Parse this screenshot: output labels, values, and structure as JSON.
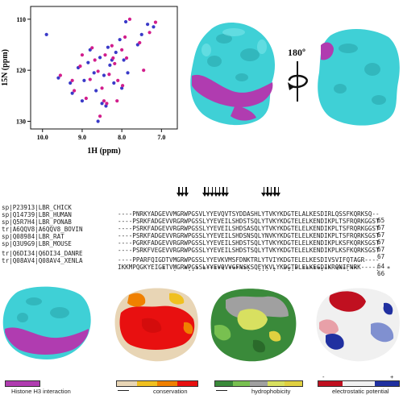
{
  "nmr": {
    "xlabel": "1H (ppm)",
    "ylabel": "15N (ppm)",
    "x_ticks": [
      "10.0",
      "9.0",
      "8.0",
      "7.0"
    ],
    "y_ticks": [
      "110",
      "120",
      "130"
    ]
  },
  "chart_data": {
    "type": "scatter",
    "xlabel": "1H (ppm)",
    "ylabel": "15N (ppm)",
    "xlim": [
      10.3,
      6.6
    ],
    "ylim": [
      107.5,
      131.5
    ],
    "series": [
      {
        "color": "#3a3ac8",
        "x": [
          9.6,
          9.25,
          9.1,
          9.0,
          8.95,
          8.85,
          8.7,
          8.65,
          8.55,
          8.45,
          8.35,
          8.3,
          8.2,
          8.15,
          8.05,
          7.95,
          7.9,
          7.85,
          7.5,
          7.35,
          7.2,
          7.6,
          8.4,
          8.8,
          9.3,
          8.5,
          8.0,
          9.9,
          8.25,
          8.6
        ],
        "y": [
          121.5,
          124.5,
          119.5,
          126,
          122,
          118.5,
          120.5,
          124,
          117.5,
          121,
          115.5,
          119,
          122.5,
          116.5,
          114,
          118,
          110.5,
          120.5,
          113,
          111,
          111.5,
          115,
          127,
          116,
          122.5,
          126.5,
          123.5,
          113,
          118,
          130
        ]
      },
      {
        "color": "#d21e8c",
        "x": [
          9.55,
          9.2,
          9.05,
          8.9,
          8.8,
          8.68,
          8.6,
          8.5,
          8.42,
          8.32,
          8.25,
          8.18,
          8.1,
          8.0,
          7.92,
          7.88,
          7.8,
          7.45,
          7.3,
          7.15,
          7.55,
          8.38,
          8.75,
          9.25,
          8.45,
          7.98,
          8.22,
          8.55,
          9.0,
          8.12
        ],
        "y": [
          121,
          124,
          119.2,
          125.5,
          121.8,
          118,
          120.2,
          123.5,
          117,
          120.8,
          115.2,
          118.7,
          122,
          116,
          113.5,
          117.6,
          110,
          120,
          112.6,
          110.6,
          114.6,
          126.5,
          115.6,
          122,
          126,
          123,
          117.6,
          129,
          117,
          126
        ]
      }
    ]
  },
  "surface_labels": {
    "rotation": "180º"
  },
  "alignment": {
    "rows": [
      {
        "id": "sp|P23913|LBR_CHICK",
        "seq": "----PNRKYADGEVVMGRWPGSVLYYEVQVTSYDDASHLYTVKYKDGTELALKESDIRLQSSFKQRKSQ--",
        "num": "65"
      },
      {
        "id": "sp|Q14739|LBR_HUMAN",
        "seq": "----PSRKFADGEVVRGRWPGSSLYYEVEILSHDSTSQLYTVKYKDGTELELKENDIKPLTSFRQRKGGST",
        "num": "67"
      },
      {
        "id": "sp|Q5R7H4|LBR_PONAB",
        "seq": "----PSRKFADGEVVRGRWPGSSLYYEVEILSHDSASQLYTVKYKDGTELELKENDIKPLTSFRQRKGGST",
        "num": "67"
      },
      {
        "id": "tr|A6QQV8|A6QQV8_BOVIN",
        "seq": "----PSRKFADGEVVRGRWPGSSLYYEVEILSHDSNSQLYNVKYKDGTELELKENDIKPLTSFRQRKSGST",
        "num": "67"
      },
      {
        "id": "sp|Q08984|LBR_RAT",
        "seq": "----PGRKFADGEVVRGRWPGSSLYYEVEILSHDSTSQLYTVKYKDGTELELKENDIKPLKSFKQRKSGST",
        "num": "67"
      },
      {
        "id": "sp|Q3U9G9|LBR_MOUSE",
        "seq": "----PSRKFVEGEVVRGRWPGSSLYYEVEILSHDSTSQLYTVKYKDGTELELKENDIKPLKSFKQRKSGST",
        "num": "67"
      },
      {
        "id": "tr|Q6DI34|Q6DI34_DANRE",
        "seq": "----PPARFQIGDTVMGRWPGSSLYYEVKVMSFDNKTRLYTVIYKDGTELELKESDIVSVIFQTAGR----",
        "num": "64"
      },
      {
        "id": "tr|Q08AV4|Q08AV4_XENLA",
        "seq": "IKKMPQGKYEIGETVMGRWPGSSLYYEVQVVGFNSKSQEYKVLYKDGTDLELKEGDIKRQNIFNRK----",
        "num": "66"
      }
    ],
    "consensus": "            *  :  *:.* ****** *****:  ..: :  *:.* *****:** ***.**     :  *",
    "arrow_positions": [
      16,
      17,
      18,
      23,
      24,
      25,
      26,
      27,
      28,
      29,
      39,
      40,
      41,
      42,
      43
    ]
  },
  "legends": {
    "h3": "Histone H3 interaction",
    "conservation": "conservation",
    "hydrophobicity": "hydrophobicity",
    "electrostatic": "electrostatic potential",
    "minus": "-",
    "plus": "+"
  },
  "colors": {
    "cyan": "#3fd0d6",
    "magenta": "#b03cb0",
    "cons": [
      "#e8d5b5",
      "#f0c020",
      "#f08000",
      "#e81010"
    ],
    "hyd": [
      "#3a8a3a",
      "#78c050",
      "#d8e060",
      "#a0a0a0",
      "#e0d040"
    ],
    "elec": [
      "#c01020",
      "#f0f0f0",
      "#2030a0"
    ]
  }
}
